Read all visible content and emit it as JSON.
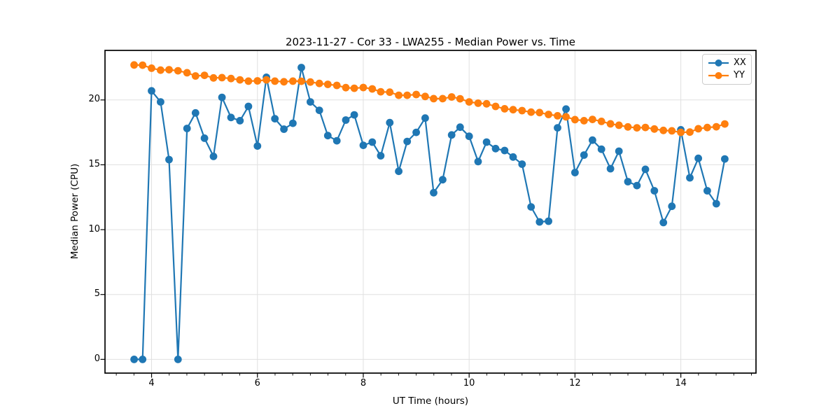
{
  "figure": {
    "background": "#ffffff"
  },
  "chart_data": {
    "type": "line",
    "title": "2023-11-27 - Cor 33 - LWA255 - Median Power vs. Time",
    "xlabel": "UT Time (hours)",
    "ylabel": "Median Power (CPU)",
    "xlim": [
      3.12,
      15.42
    ],
    "ylim": [
      -1.06,
      23.82
    ],
    "xticks": [
      4,
      6,
      8,
      10,
      12,
      14
    ],
    "yticks": [
      0,
      5,
      10,
      15,
      20
    ],
    "x_minor_tick_step": 0.3333,
    "grid": true,
    "grid_color": "#e0e0e0",
    "legend_position": "upper right",
    "x": [
      3.67,
      3.83,
      4.0,
      4.17,
      4.33,
      4.5,
      4.67,
      4.83,
      5.0,
      5.17,
      5.33,
      5.5,
      5.67,
      5.83,
      6.0,
      6.17,
      6.33,
      6.5,
      6.67,
      6.83,
      7.0,
      7.17,
      7.33,
      7.5,
      7.67,
      7.83,
      8.0,
      8.17,
      8.33,
      8.5,
      8.67,
      8.83,
      9.0,
      9.17,
      9.33,
      9.5,
      9.67,
      9.83,
      10.0,
      10.17,
      10.33,
      10.5,
      10.67,
      10.83,
      11.0,
      11.17,
      11.33,
      11.5,
      11.67,
      11.83,
      12.0,
      12.17,
      12.33,
      12.5,
      12.67,
      12.83,
      13.0,
      13.17,
      13.33,
      13.5,
      13.67,
      13.83,
      14.0,
      14.17,
      14.33,
      14.5,
      14.67,
      14.83
    ],
    "series": [
      {
        "name": "XX",
        "color": "#1f77b4",
        "values": [
          0,
          0,
          20.7,
          19.85,
          15.4,
          0,
          17.8,
          19.0,
          17.05,
          15.65,
          20.2,
          18.65,
          18.4,
          19.5,
          16.45,
          21.75,
          18.55,
          17.75,
          18.2,
          22.5,
          19.85,
          19.2,
          17.25,
          16.85,
          18.45,
          18.85,
          16.5,
          16.75,
          15.7,
          18.25,
          14.5,
          16.8,
          17.5,
          18.6,
          12.85,
          13.85,
          17.3,
          17.9,
          17.2,
          15.25,
          16.75,
          16.25,
          16.1,
          15.6,
          15.05,
          11.75,
          10.6,
          10.65,
          17.85,
          19.3,
          14.4,
          15.75,
          16.9,
          16.2,
          14.7,
          16.05,
          13.7,
          13.4,
          14.65,
          13.0,
          10.55,
          11.8,
          17.7,
          14.0,
          15.5,
          13.0,
          12.0,
          15.45
        ]
      },
      {
        "name": "YY",
        "color": "#ff7f0e",
        "values": [
          22.7,
          22.68,
          22.45,
          22.3,
          22.33,
          22.25,
          22.1,
          21.85,
          21.9,
          21.7,
          21.72,
          21.65,
          21.55,
          21.45,
          21.47,
          21.55,
          21.45,
          21.4,
          21.45,
          21.44,
          21.38,
          21.27,
          21.2,
          21.12,
          20.95,
          20.9,
          20.96,
          20.85,
          20.63,
          20.6,
          20.36,
          20.36,
          20.42,
          20.27,
          20.1,
          20.1,
          20.23,
          20.09,
          19.85,
          19.75,
          19.7,
          19.5,
          19.32,
          19.25,
          19.18,
          19.06,
          19.03,
          18.88,
          18.78,
          18.7,
          18.48,
          18.4,
          18.5,
          18.35,
          18.16,
          18.05,
          17.92,
          17.85,
          17.88,
          17.76,
          17.65,
          17.62,
          17.5,
          17.52,
          17.78,
          17.87,
          17.93,
          18.15
        ]
      }
    ]
  }
}
